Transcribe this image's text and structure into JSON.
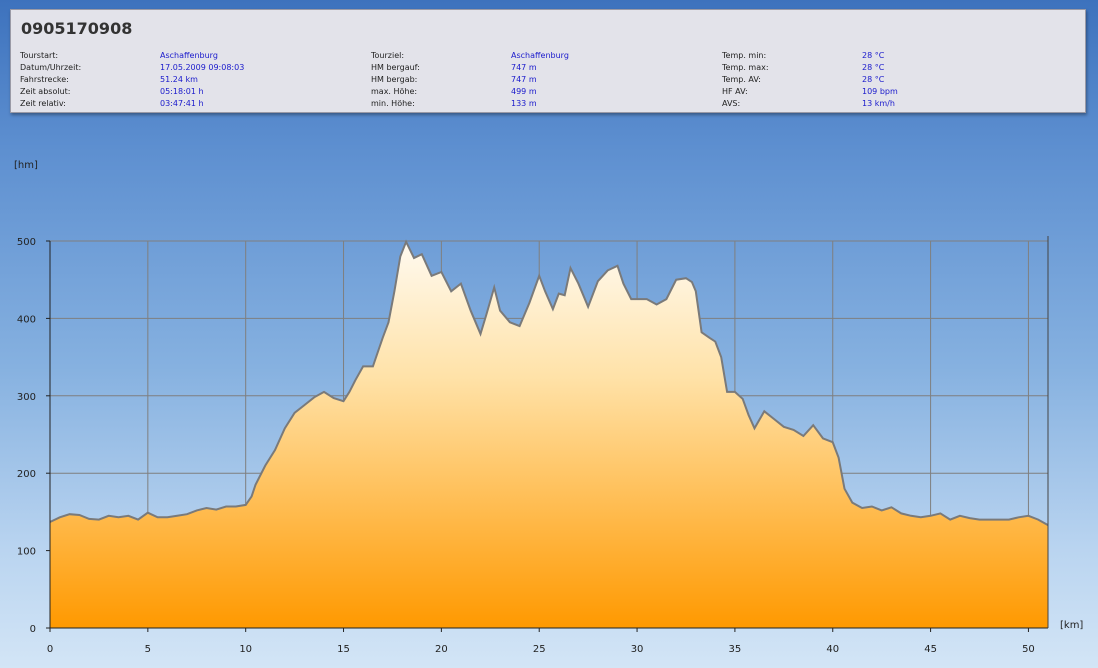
{
  "header": {
    "title": "0905170908",
    "columns": [
      [
        {
          "label": "Tourstart:",
          "value": "Aschaffenburg"
        },
        {
          "label": "Datum/Uhrzeit:",
          "value": "17.05.2009 09:08:03"
        },
        {
          "label": "Fahrstrecke:",
          "value": "51.24 km"
        },
        {
          "label": "Zeit absolut:",
          "value": "05:18:01 h"
        },
        {
          "label": "Zeit relativ:",
          "value": "03:47:41 h"
        }
      ],
      [
        {
          "label": "Tourziel:",
          "value": "Aschaffenburg"
        },
        {
          "label": "HM bergauf:",
          "value": "747 m"
        },
        {
          "label": "HM bergab:",
          "value": "747 m"
        },
        {
          "label": "max. Höhe:",
          "value": "499 m"
        },
        {
          "label": "min. Höhe:",
          "value": "133 m"
        }
      ],
      [
        {
          "label": "Temp. min:",
          "value": "28 °C"
        },
        {
          "label": "Temp. max:",
          "value": "28 °C"
        },
        {
          "label": "Temp. AV:",
          "value": "28 °C"
        },
        {
          "label": "HF AV:",
          "value": "109 bpm"
        },
        {
          "label": "AVS:",
          "value": "13 km/h"
        }
      ]
    ]
  },
  "chart_data": {
    "type": "area",
    "title": "",
    "xlabel": "[km]",
    "ylabel": "[hm]",
    "xlim": [
      0,
      51
    ],
    "ylim": [
      0,
      500
    ],
    "x_ticks": [
      0,
      5,
      10,
      15,
      20,
      25,
      30,
      35,
      40,
      45,
      50
    ],
    "y_ticks": [
      0,
      100,
      200,
      300,
      400,
      500
    ],
    "grid": true,
    "colors": {
      "fill_top": "#fffaf0",
      "fill_bottom": "#ff9900",
      "line": "#7a7a7a"
    },
    "series": [
      {
        "x": [
          0,
          0.5,
          1,
          1.5,
          2,
          2.5,
          3,
          3.5,
          4,
          4.5,
          5,
          5.5,
          6,
          6.5,
          7,
          7.5,
          8,
          8.5,
          9,
          9.5,
          10,
          10.3,
          10.5,
          11,
          11.5,
          12,
          12.5,
          13,
          13.5,
          14,
          14.5,
          15,
          15.3,
          15.6,
          16,
          16.5,
          17,
          17.3,
          17.6,
          17.9,
          18.2,
          18.6,
          19,
          19.5,
          20,
          20.5,
          21,
          21.5,
          22,
          22.3,
          22.7,
          23,
          23.5,
          24,
          24.5,
          25,
          25.3,
          25.7,
          26,
          26.3,
          26.6,
          27,
          27.5,
          28,
          28.5,
          29,
          29.3,
          29.7,
          30,
          30.5,
          31,
          31.5,
          32,
          32.5,
          32.8,
          33,
          33.3,
          33.7,
          34,
          34.3,
          34.6,
          35,
          35.4,
          35.7,
          36,
          36.5,
          37,
          37.5,
          38,
          38.5,
          39,
          39.5,
          40,
          40.3,
          40.6,
          41,
          41.5,
          42,
          42.5,
          43,
          43.5,
          44,
          44.5,
          45,
          45.5,
          46,
          46.5,
          47,
          47.5,
          48,
          48.5,
          49,
          49.5,
          50,
          50.5,
          51
        ],
        "y": [
          137,
          143,
          147,
          146,
          141,
          140,
          145,
          143,
          145,
          140,
          149,
          143,
          143,
          145,
          147,
          152,
          155,
          153,
          157,
          157,
          159,
          170,
          185,
          210,
          230,
          258,
          278,
          288,
          298,
          305,
          297,
          293,
          305,
          320,
          338,
          338,
          375,
          395,
          435,
          480,
          499,
          478,
          483,
          455,
          460,
          435,
          445,
          410,
          380,
          405,
          440,
          410,
          395,
          390,
          420,
          455,
          435,
          412,
          432,
          430,
          465,
          445,
          415,
          448,
          462,
          468,
          445,
          425,
          425,
          425,
          418,
          425,
          450,
          452,
          447,
          435,
          382,
          375,
          370,
          350,
          305,
          305,
          296,
          275,
          258,
          280,
          270,
          260,
          256,
          248,
          262,
          245,
          240,
          220,
          180,
          162,
          155,
          157,
          152,
          156,
          148,
          145,
          143,
          145,
          148,
          140,
          145,
          142,
          140,
          140,
          140,
          140,
          143,
          145,
          140,
          133
        ]
      }
    ]
  }
}
